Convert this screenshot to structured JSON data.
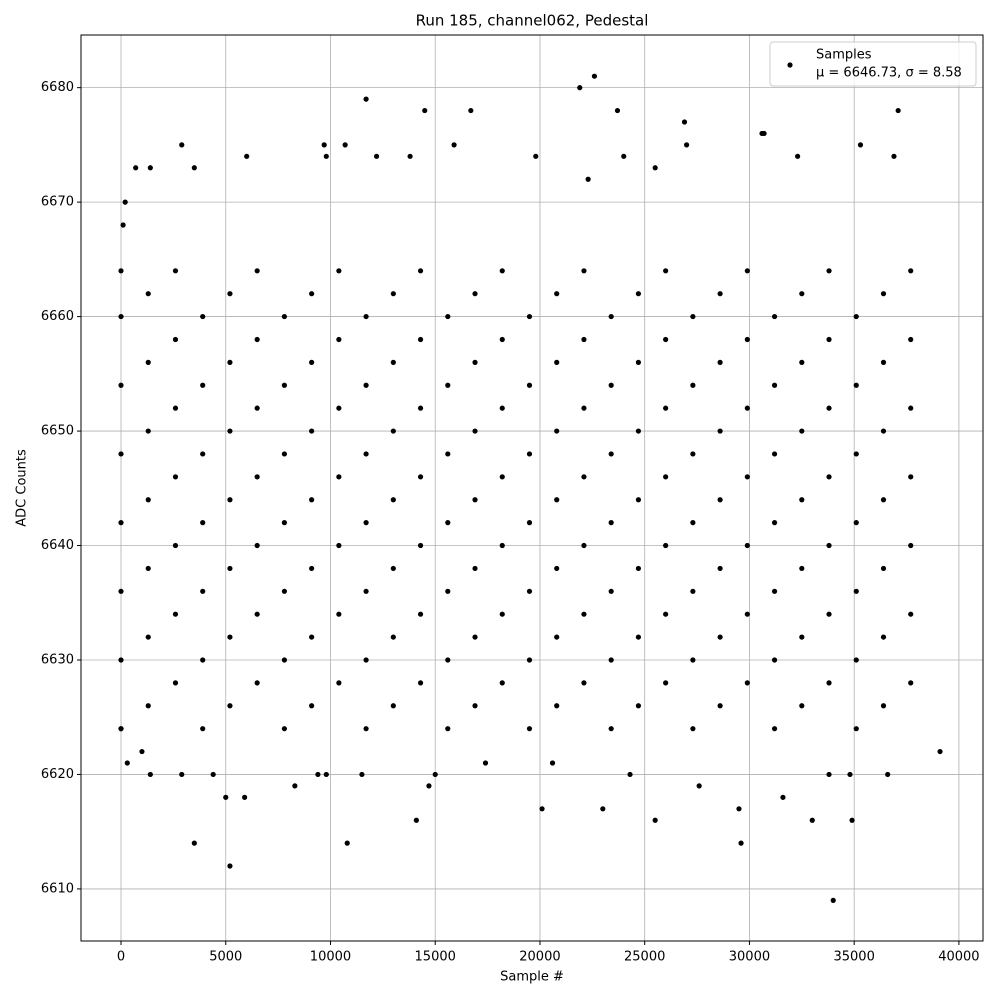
{
  "chart_data": {
    "type": "scatter",
    "title": "Run 185, channel062, Pedestal",
    "xlabel": "Sample #",
    "ylabel": "ADC Counts",
    "legend_note": "μ = 6646.73, σ = 8.58",
    "legend_loc": "upper right",
    "grid": true,
    "xlim": [
      -1910,
      41150
    ],
    "ylim": [
      6605.45,
      6684.6
    ],
    "xticks": [
      0,
      5000,
      10000,
      15000,
      20000,
      25000,
      30000,
      35000,
      40000
    ],
    "yticks": [
      6610,
      6620,
      6630,
      6640,
      6650,
      6660,
      6670,
      6680
    ],
    "series": [
      {
        "name": "Samples",
        "color": "#000000",
        "x": [
          3500,
          5200,
          10800,
          14100,
          20100,
          23000,
          25500,
          29600,
          33000,
          34000,
          34900,
          5000,
          5900,
          8300,
          14700,
          27600,
          31600,
          29500,
          21900,
          22600,
          11700,
          14500,
          16700,
          23700,
          37100,
          26900,
          30600,
          30700,
          35300,
          2900,
          9700,
          10700,
          15900,
          27000,
          3500,
          700,
          1400,
          25500,
          19800,
          24000,
          32300,
          36900,
          12200,
          13800,
          6000,
          9800,
          22300,
          0,
          100,
          200,
          0,
          300,
          1000,
          1400,
          2900,
          4400,
          9400,
          9800,
          11500,
          15000,
          24300,
          33800,
          34800,
          36600,
          20600,
          17400,
          39100,
          0,
          3900,
          7800,
          11700,
          15600,
          19500,
          23400,
          27300,
          31200,
          35100,
          1300,
          5200,
          9100,
          13000,
          16900,
          20800,
          24700,
          28600,
          32500,
          36400,
          2600,
          6500,
          10400,
          14300,
          18200,
          22100,
          26000,
          29900,
          33800,
          37700,
          0,
          3900,
          7800,
          11700,
          15600,
          19500,
          23400,
          27300,
          31200,
          35100,
          1300,
          5200,
          9100,
          13000,
          16900,
          20800,
          24700,
          28600,
          32500,
          36400,
          2600,
          6500,
          10400,
          14300,
          18200,
          22100,
          26000,
          29900,
          33800,
          37700,
          0,
          3900,
          7800,
          11700,
          15600,
          19500,
          23400,
          27300,
          31200,
          35100,
          1300,
          5200,
          9100,
          13000,
          16900,
          20800,
          24700,
          28600,
          32500,
          36400,
          2600,
          6500,
          10400,
          14300,
          18200,
          22100,
          26000,
          29900,
          33800,
          37700,
          0,
          3900,
          7800,
          11700,
          15600,
          19500,
          23400,
          27300,
          31200,
          35100,
          1300,
          5200,
          9100,
          13000,
          16900,
          20800,
          24700,
          28600,
          32500,
          36400,
          2600,
          6500,
          10400,
          14300,
          18200,
          22100,
          26000,
          29900,
          33800,
          37700,
          0,
          3900,
          7800,
          11700,
          15600,
          19500,
          23400,
          27300,
          31200,
          35100,
          1300,
          5200,
          9100,
          13000,
          16900,
          20800,
          24700,
          28600,
          32500,
          36400,
          2600,
          6500,
          10400,
          14300,
          18200,
          22100,
          26000,
          29900,
          33800,
          37700,
          0,
          3900,
          7800,
          11700,
          15600,
          19500,
          23400,
          27300,
          31200,
          35100,
          1300,
          5200,
          9100,
          13000,
          16900,
          20800,
          24700,
          28600,
          32500,
          36400,
          2600,
          6500,
          10400,
          14300,
          18200,
          22100,
          26000,
          29900,
          33800,
          37700,
          0,
          3900,
          7800,
          11700,
          15600,
          19500,
          23400,
          27300,
          31200,
          35100,
          1300,
          5200,
          9100,
          13000,
          16900,
          20800,
          24700,
          28600,
          32500,
          36400,
          2600,
          6500,
          10400,
          14300,
          18200,
          22100,
          26000,
          29900,
          33800,
          37700
        ],
        "values": [
          6614,
          6612,
          6614,
          6616,
          6617,
          6617,
          6616,
          6614,
          6616,
          6609,
          6616,
          6618,
          6618,
          6619,
          6619,
          6619,
          6618,
          6617,
          6680,
          6681,
          6679,
          6678,
          6678,
          6678,
          6678,
          6677,
          6676,
          6676,
          6675,
          6675,
          6675,
          6675,
          6675,
          6675,
          6673,
          6673,
          6673,
          6673,
          6674,
          6674,
          6674,
          6674,
          6674,
          6674,
          6674,
          6674,
          6672,
          6664,
          6668,
          6670,
          6624,
          6621,
          6622,
          6620,
          6620,
          6620,
          6620,
          6620,
          6620,
          6620,
          6620,
          6620,
          6620,
          6620,
          6621,
          6621,
          6622,
          6624,
          6624,
          6624,
          6624,
          6624,
          6624,
          6624,
          6624,
          6624,
          6624,
          6626,
          6626,
          6626,
          6626,
          6626,
          6626,
          6626,
          6626,
          6626,
          6626,
          6628,
          6628,
          6628,
          6628,
          6628,
          6628,
          6628,
          6628,
          6628,
          6628,
          6630,
          6630,
          6630,
          6630,
          6630,
          6630,
          6630,
          6630,
          6630,
          6630,
          6632,
          6632,
          6632,
          6632,
          6632,
          6632,
          6632,
          6632,
          6632,
          6632,
          6634,
          6634,
          6634,
          6634,
          6634,
          6634,
          6634,
          6634,
          6634,
          6634,
          6636,
          6636,
          6636,
          6636,
          6636,
          6636,
          6636,
          6636,
          6636,
          6636,
          6638,
          6638,
          6638,
          6638,
          6638,
          6638,
          6638,
          6638,
          6638,
          6638,
          6640,
          6640,
          6640,
          6640,
          6640,
          6640,
          6640,
          6640,
          6640,
          6640,
          6642,
          6642,
          6642,
          6642,
          6642,
          6642,
          6642,
          6642,
          6642,
          6642,
          6644,
          6644,
          6644,
          6644,
          6644,
          6644,
          6644,
          6644,
          6644,
          6644,
          6646,
          6646,
          6646,
          6646,
          6646,
          6646,
          6646,
          6646,
          6646,
          6646,
          6648,
          6648,
          6648,
          6648,
          6648,
          6648,
          6648,
          6648,
          6648,
          6648,
          6650,
          6650,
          6650,
          6650,
          6650,
          6650,
          6650,
          6650,
          6650,
          6650,
          6652,
          6652,
          6652,
          6652,
          6652,
          6652,
          6652,
          6652,
          6652,
          6652,
          6654,
          6654,
          6654,
          6654,
          6654,
          6654,
          6654,
          6654,
          6654,
          6654,
          6656,
          6656,
          6656,
          6656,
          6656,
          6656,
          6656,
          6656,
          6656,
          6656,
          6658,
          6658,
          6658,
          6658,
          6658,
          6658,
          6658,
          6658,
          6658,
          6658,
          6660,
          6660,
          6660,
          6660,
          6660,
          6660,
          6660,
          6660,
          6660,
          6660,
          6662,
          6662,
          6662,
          6662,
          6662,
          6662,
          6662,
          6662,
          6662,
          6662,
          6664,
          6664,
          6664,
          6664,
          6664,
          6664,
          6664,
          6664,
          6664,
          6664
        ]
      }
    ]
  }
}
